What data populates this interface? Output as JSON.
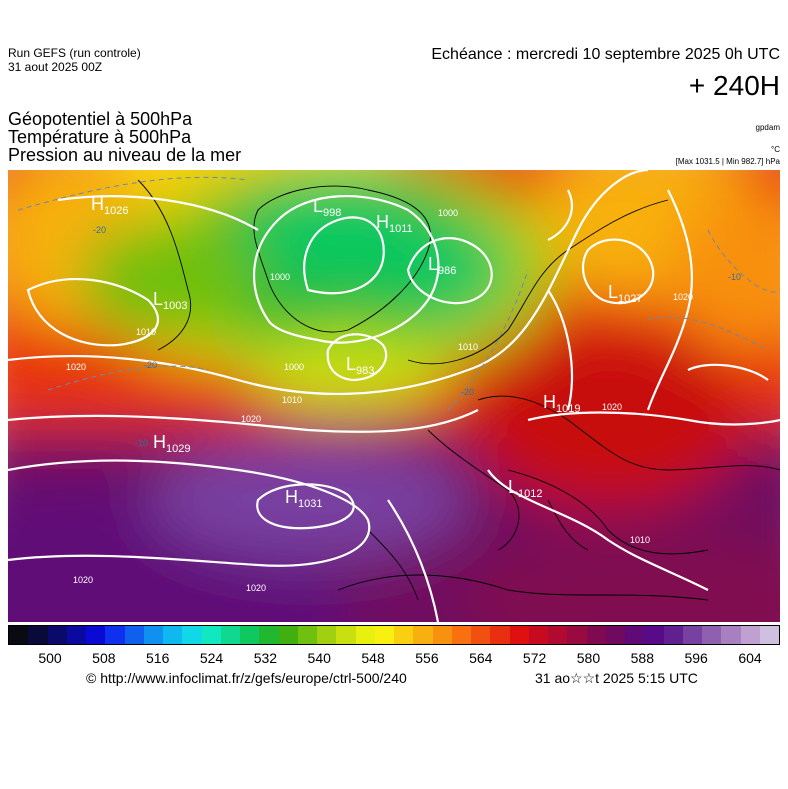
{
  "header": {
    "run_line1": "Run GEFS (run controle)",
    "run_line2": "31 aout 2025 00Z",
    "echeance": "Echéance : mercredi 10 septembre 2025 0h UTC",
    "lead": "+ 240H",
    "var1": "Géopotentiel à 500hPa",
    "var2": "Température à 500hPa",
    "var3": "Pression au niveau de la mer",
    "unit1": "gpdam",
    "unit2": "°C",
    "maxmin": "[Max 1031.5 | Min 982.7] hPa"
  },
  "pressure_centers": [
    {
      "type": "H",
      "value": "1026"
    },
    {
      "type": "L",
      "value": "998"
    },
    {
      "type": "H",
      "value": "1011"
    },
    {
      "type": "L",
      "value": "986"
    },
    {
      "type": "L",
      "value": "1003"
    },
    {
      "type": "L",
      "value": "983"
    },
    {
      "type": "L",
      "value": "1027"
    },
    {
      "type": "H",
      "value": "1019"
    },
    {
      "type": "H",
      "value": "1029"
    },
    {
      "type": "H",
      "value": "1031"
    },
    {
      "type": "L",
      "value": "1012"
    }
  ],
  "isobar_labels": [
    "1000",
    "1010",
    "1020",
    "1000",
    "1010",
    "1020",
    "1010",
    "1020",
    "1020",
    "1010",
    "1020",
    "1020",
    "1000"
  ],
  "isotherm_labels": [
    "-20",
    "-10",
    "-20",
    "-20",
    "-10"
  ],
  "colorbar": {
    "ticks": [
      "500",
      "508",
      "516",
      "524",
      "532",
      "540",
      "548",
      "556",
      "564",
      "572",
      "580",
      "588",
      "596",
      "604"
    ],
    "colors": [
      "#0a0a12",
      "#0a0a3a",
      "#0a0a6a",
      "#0a0aa0",
      "#0a0ad4",
      "#1030f0",
      "#1060f0",
      "#1090f0",
      "#10b8f0",
      "#10d8e8",
      "#10e8c0",
      "#10d890",
      "#10c860",
      "#20b830",
      "#40b010",
      "#70c010",
      "#a0d010",
      "#c8e010",
      "#e8f010",
      "#f8f010",
      "#f8d010",
      "#f8b010",
      "#f89010",
      "#f87010",
      "#f05010",
      "#e83010",
      "#e01010",
      "#c80a20",
      "#b00a30",
      "#980a40",
      "#800a50",
      "#700a60",
      "#600a78",
      "#580a88",
      "#602090",
      "#7840a0",
      "#9060b0",
      "#a880c0",
      "#c0a0d0",
      "#d0c0e0"
    ]
  },
  "footer": {
    "url": "© http://www.infoclimat.fr/z/gefs/europe/ctrl-500/240",
    "date": "31 ao☆☆t 2025  5:15 UTC"
  }
}
